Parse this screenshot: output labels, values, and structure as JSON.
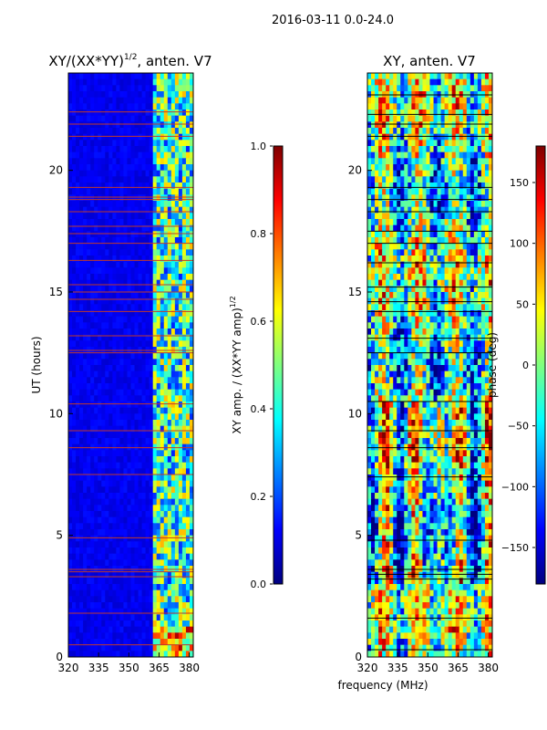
{
  "figure": {
    "suptitle": "2016-03-11 0.0-24.0",
    "xlabel": "frequency (MHz)",
    "colors": {
      "flag_line": "#c0392b",
      "jet": [
        "#00007f",
        "#0000ff",
        "#007fff",
        "#00ffff",
        "#7fff7f",
        "#ffff00",
        "#ff7f00",
        "#ff0000",
        "#7f0000"
      ]
    }
  },
  "chart_data": [
    {
      "type": "heatmap",
      "name": "amplitude-panel",
      "title": "XY/(XX*YY)",
      "title_superscript": "1/2",
      "title_suffix": ", anten. V7",
      "xlabel": "",
      "ylabel": "UT (hours)",
      "xlim": [
        320,
        382
      ],
      "ylim": [
        0,
        24
      ],
      "xticks": [
        320,
        335,
        350,
        365,
        380
      ],
      "yticks": [
        0,
        5,
        10,
        15,
        20
      ],
      "colorbar": {
        "label": "XY amp. / (XX*YY amp)",
        "label_superscript": "1/2",
        "range": [
          0.0,
          1.0
        ],
        "ticks": [
          "0.0",
          "0.2",
          "0.4",
          "0.6",
          "0.8",
          "1.0"
        ]
      },
      "description_values": {
        "background_level": 0.08,
        "bright_band_mhz": [
          362,
          382
        ]
      },
      "flag_times_hours": [
        0.5,
        1.8,
        3.3,
        3.5,
        3.6,
        4.9,
        7.5,
        8.6,
        9.3,
        10.4,
        12.5,
        12.6,
        13.2,
        14.2,
        14.7,
        15.0,
        15.3,
        16.3,
        17.0,
        17.4,
        17.7,
        18.3,
        18.8,
        18.9,
        19.3,
        21.4,
        21.9,
        22.4
      ]
    },
    {
      "type": "heatmap",
      "name": "phase-panel",
      "title": "XY, anten. V7",
      "xlabel": "",
      "ylabel": "",
      "xlim": [
        320,
        382
      ],
      "ylim": [
        0,
        24
      ],
      "xticks": [
        320,
        335,
        350,
        365,
        380
      ],
      "yticks": [
        0,
        5,
        10,
        15,
        20
      ],
      "colorbar": {
        "label": "phase (deg)",
        "range": [
          -180,
          180
        ],
        "ticks": [
          "−150",
          "−100",
          "−50",
          "0",
          "50",
          "100",
          "150"
        ],
        "tick_values": [
          -150,
          -100,
          -50,
          0,
          50,
          100,
          150
        ]
      },
      "flag_times_hours": [
        0.3,
        1.6,
        3.2,
        3.4,
        3.6,
        4.8,
        7.4,
        8.6,
        9.3,
        10.5,
        12.5,
        13.1,
        14.2,
        14.6,
        15.2,
        16.2,
        17.0,
        17.5,
        18.3,
        18.8,
        19.3,
        21.4,
        21.9,
        22.3,
        23.1
      ]
    }
  ]
}
